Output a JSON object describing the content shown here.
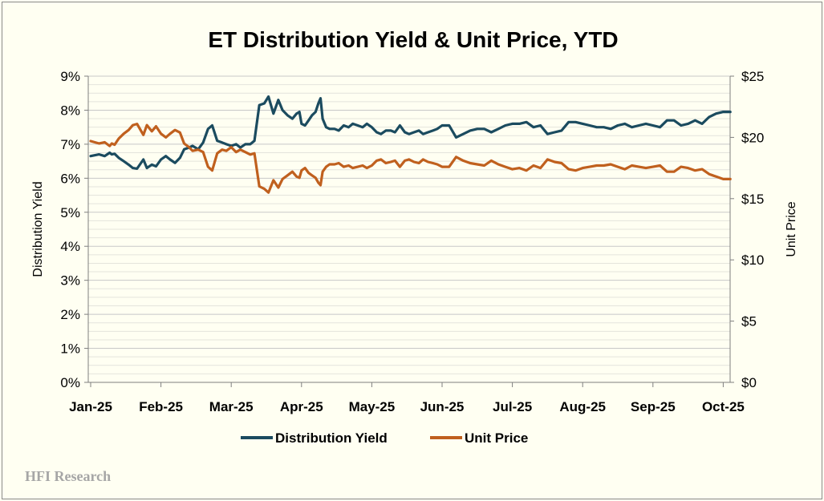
{
  "chart_data": {
    "type": "line",
    "title": "ET Distribution Yield & Unit Price, YTD",
    "xlabel": "",
    "ylabel": "Distribution Yield",
    "y2label": "Unit Price",
    "x_categories": [
      "Jan-25",
      "Feb-25",
      "Mar-25",
      "Apr-25",
      "May-25",
      "Jun-25",
      "Jul-25",
      "Aug-25",
      "Sep-25",
      "Oct-25"
    ],
    "ylim": [
      0,
      9
    ],
    "y_ticks": [
      "0%",
      "1%",
      "2%",
      "3%",
      "4%",
      "5%",
      "6%",
      "7%",
      "8%",
      "9%"
    ],
    "y2lim": [
      0,
      25
    ],
    "y2_ticks": [
      "$0",
      "$5",
      "$10",
      "$15",
      "$20",
      "$25"
    ],
    "gridlines": "horizontal",
    "legend_position": "bottom",
    "x_units": "months since Jan-25",
    "series": [
      {
        "name": "Distribution Yield",
        "axis": "left",
        "color": "#1b4b5f",
        "x": [
          0.0,
          0.12,
          0.2,
          0.27,
          0.3,
          0.34,
          0.4,
          0.47,
          0.54,
          0.6,
          0.66,
          0.75,
          0.8,
          0.87,
          0.93,
          1.0,
          1.07,
          1.13,
          1.2,
          1.27,
          1.33,
          1.4,
          1.45,
          1.53,
          1.6,
          1.67,
          1.73,
          1.8,
          1.87,
          1.93,
          2.0,
          2.07,
          2.13,
          2.2,
          2.27,
          2.33,
          2.4,
          2.47,
          2.53,
          2.6,
          2.67,
          2.73,
          2.8,
          2.87,
          2.93,
          2.97,
          3.0,
          3.05,
          3.1,
          3.15,
          3.2,
          3.24,
          3.27,
          3.3,
          3.35,
          3.4,
          3.47,
          3.53,
          3.6,
          3.67,
          3.73,
          3.8,
          3.87,
          3.93,
          4.0,
          4.07,
          4.13,
          4.2,
          4.27,
          4.33,
          4.4,
          4.47,
          4.53,
          4.6,
          4.67,
          4.73,
          4.8,
          4.87,
          4.93,
          5.0,
          5.1,
          5.2,
          5.3,
          5.4,
          5.5,
          5.6,
          5.7,
          5.8,
          5.9,
          6.0,
          6.1,
          6.2,
          6.3,
          6.4,
          6.5,
          6.6,
          6.7,
          6.8,
          6.9,
          7.0,
          7.1,
          7.2,
          7.3,
          7.4,
          7.5,
          7.6,
          7.7,
          7.8,
          7.9,
          8.0,
          8.1,
          8.2,
          8.3,
          8.4,
          8.5,
          8.6,
          8.7,
          8.8,
          8.9,
          9.0,
          9.1
        ],
        "values": [
          6.65,
          6.7,
          6.65,
          6.75,
          6.7,
          6.72,
          6.6,
          6.5,
          6.4,
          6.3,
          6.28,
          6.55,
          6.3,
          6.4,
          6.35,
          6.55,
          6.65,
          6.55,
          6.45,
          6.6,
          6.85,
          6.9,
          6.95,
          6.85,
          7.05,
          7.45,
          7.55,
          7.1,
          7.05,
          7.0,
          6.95,
          7.0,
          6.9,
          7.0,
          7.0,
          7.1,
          8.15,
          8.2,
          8.4,
          7.9,
          8.3,
          8.0,
          7.85,
          7.75,
          7.9,
          7.95,
          7.6,
          7.55,
          7.7,
          7.85,
          7.95,
          8.2,
          8.35,
          7.75,
          7.5,
          7.45,
          7.45,
          7.4,
          7.55,
          7.5,
          7.6,
          7.55,
          7.5,
          7.6,
          7.5,
          7.35,
          7.3,
          7.4,
          7.4,
          7.35,
          7.55,
          7.35,
          7.3,
          7.35,
          7.4,
          7.3,
          7.35,
          7.4,
          7.45,
          7.55,
          7.55,
          7.2,
          7.3,
          7.4,
          7.45,
          7.45,
          7.35,
          7.45,
          7.55,
          7.6,
          7.6,
          7.65,
          7.5,
          7.55,
          7.3,
          7.35,
          7.4,
          7.65,
          7.65,
          7.6,
          7.55,
          7.5,
          7.5,
          7.45,
          7.55,
          7.6,
          7.5,
          7.55,
          7.6,
          7.55,
          7.5,
          7.7,
          7.7,
          7.55,
          7.6,
          7.7,
          7.6,
          7.8,
          7.9,
          7.95,
          7.95
        ]
      },
      {
        "name": "Unit Price",
        "axis": "right",
        "color": "#c0601e",
        "x": [
          0.0,
          0.12,
          0.2,
          0.27,
          0.3,
          0.34,
          0.4,
          0.47,
          0.54,
          0.6,
          0.66,
          0.75,
          0.8,
          0.87,
          0.93,
          1.0,
          1.07,
          1.13,
          1.2,
          1.27,
          1.33,
          1.4,
          1.45,
          1.53,
          1.6,
          1.67,
          1.73,
          1.8,
          1.87,
          1.93,
          2.0,
          2.07,
          2.13,
          2.2,
          2.27,
          2.33,
          2.4,
          2.47,
          2.53,
          2.6,
          2.67,
          2.73,
          2.8,
          2.87,
          2.93,
          2.97,
          3.0,
          3.05,
          3.1,
          3.15,
          3.2,
          3.24,
          3.27,
          3.3,
          3.35,
          3.4,
          3.47,
          3.53,
          3.6,
          3.67,
          3.73,
          3.8,
          3.87,
          3.93,
          4.0,
          4.07,
          4.13,
          4.2,
          4.27,
          4.33,
          4.4,
          4.47,
          4.53,
          4.6,
          4.67,
          4.73,
          4.8,
          4.87,
          4.93,
          5.0,
          5.1,
          5.2,
          5.3,
          5.4,
          5.5,
          5.6,
          5.7,
          5.8,
          5.9,
          6.0,
          6.1,
          6.2,
          6.3,
          6.4,
          6.5,
          6.6,
          6.7,
          6.8,
          6.9,
          7.0,
          7.1,
          7.2,
          7.3,
          7.4,
          7.5,
          7.6,
          7.7,
          7.8,
          7.9,
          8.0,
          8.1,
          8.2,
          8.3,
          8.4,
          8.5,
          8.6,
          8.7,
          8.8,
          8.9,
          9.0,
          9.1
        ],
        "values": [
          19.7,
          19.5,
          19.6,
          19.3,
          19.5,
          19.4,
          19.9,
          20.3,
          20.6,
          21.0,
          21.1,
          20.2,
          21.0,
          20.5,
          20.9,
          20.3,
          20.0,
          20.3,
          20.6,
          20.4,
          19.5,
          19.2,
          18.9,
          19.0,
          18.8,
          17.6,
          17.3,
          18.7,
          19.0,
          18.9,
          19.2,
          18.8,
          19.0,
          18.8,
          18.6,
          18.7,
          16.0,
          15.8,
          15.5,
          16.5,
          15.9,
          16.6,
          16.9,
          17.2,
          16.8,
          16.7,
          17.3,
          17.5,
          17.1,
          16.9,
          16.7,
          16.3,
          16.1,
          17.2,
          17.6,
          17.8,
          17.8,
          17.9,
          17.6,
          17.7,
          17.5,
          17.6,
          17.7,
          17.5,
          17.7,
          18.1,
          18.2,
          17.9,
          18.0,
          18.1,
          17.6,
          18.1,
          18.2,
          18.0,
          17.9,
          18.2,
          18.0,
          17.9,
          17.8,
          17.6,
          17.6,
          18.4,
          18.1,
          17.9,
          17.8,
          17.7,
          18.1,
          17.8,
          17.6,
          17.4,
          17.5,
          17.3,
          17.7,
          17.5,
          18.2,
          18.0,
          17.9,
          17.4,
          17.3,
          17.5,
          17.6,
          17.7,
          17.7,
          17.8,
          17.6,
          17.4,
          17.7,
          17.6,
          17.5,
          17.6,
          17.7,
          17.2,
          17.2,
          17.6,
          17.5,
          17.3,
          17.4,
          17.0,
          16.8,
          16.6,
          16.6
        ]
      }
    ],
    "legend": [
      "Distribution Yield",
      "Unit Price"
    ],
    "watermark": "HFI Research"
  }
}
